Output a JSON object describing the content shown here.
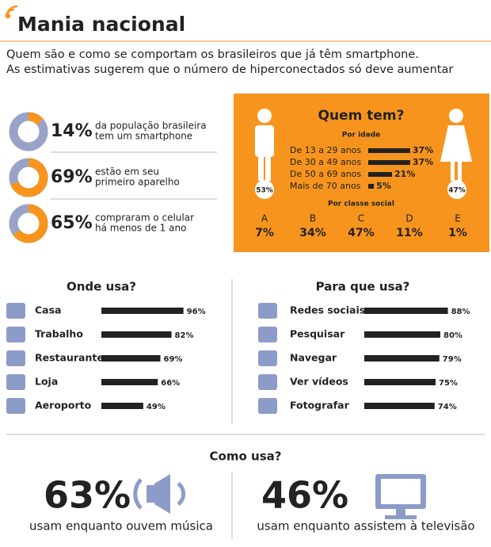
{
  "header": {
    "title": "Mania nacional",
    "subtitle_lines": [
      "Quem são e como se comportam os brasileiros que já têm smartphone.",
      "As estimativas sugerem que o número de hiperconectados só deve aumentar"
    ]
  },
  "donuts": {
    "color": "#f7941d",
    "base_color": "#98a3c7",
    "items": [
      {
        "value": 14,
        "value_label": "14%",
        "text_lines": [
          "da população brasileira",
          "tem um smartphone"
        ]
      },
      {
        "value": 69,
        "value_label": "69%",
        "text_lines": [
          "estão em seu",
          "primeiro aparelho"
        ]
      },
      {
        "value": 65,
        "value_label": "65%",
        "text_lines": [
          "compraram o celular",
          "há menos de 1 ano"
        ]
      }
    ]
  },
  "quem_tem": {
    "title": "Quem tem?",
    "male_label": "53%",
    "female_label": "47%",
    "por_idade": {
      "title": "Por idade",
      "categories": [
        "De 13 a 29 anos",
        "De 30 a 49 anos",
        "De 50 a 69 anos",
        "Mais de 70 anos"
      ],
      "values": [
        37,
        37,
        21,
        5
      ],
      "value_labels": [
        "37%",
        "37%",
        "21%",
        "5%"
      ],
      "color": "#222"
    },
    "por_classe": {
      "title": "Por classe social",
      "categories": [
        "A",
        "B",
        "C",
        "D",
        "E"
      ],
      "value_labels": [
        "7%",
        "34%",
        "47%",
        "11%",
        "1%"
      ]
    }
  },
  "onde_usa": {
    "title": "Onde usa?",
    "categories": [
      "Casa",
      "Trabalho",
      "Restaurante",
      "Loja",
      "Aeroporto"
    ],
    "values": [
      96,
      82,
      69,
      66,
      49
    ],
    "value_labels": [
      "96%",
      "82%",
      "69%",
      "66%",
      "49%"
    ],
    "color": "#222"
  },
  "para_que_usa": {
    "title": "Para que usa?",
    "categories": [
      "Redes sociais",
      "Pesquisar",
      "Navegar",
      "Ver vídeos",
      "Fotografar"
    ],
    "values": [
      88,
      80,
      79,
      75,
      74
    ],
    "value_labels": [
      "88%",
      "80%",
      "79%",
      "75%",
      "74%"
    ],
    "color": "#222"
  },
  "como_usa": {
    "title": "Como usa?",
    "items": [
      {
        "value_label": "63%",
        "text": "usam enquanto ouvem música"
      },
      {
        "value_label": "46%",
        "text": "usam enquanto assistem à televisão"
      }
    ]
  }
}
